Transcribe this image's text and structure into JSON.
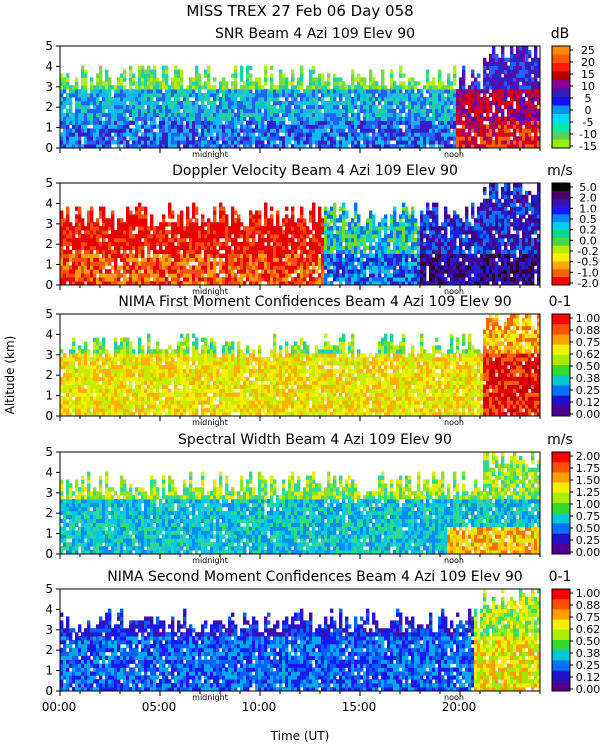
{
  "figure": {
    "title": "MISS TREX  27 Feb 06 Day 058",
    "ylabel": "Altitude (km)",
    "xlabel": "Time (UT)"
  },
  "marker_labels": {
    "midnight": "midnight",
    "noon": "noon"
  },
  "chart_data": [
    {
      "type": "heatmap",
      "title": "SNR Beam 4 Azi 109 Elev 90",
      "unit": "dB",
      "x_ticks": [
        "00:00",
        "05:00",
        "10:00",
        "15:00",
        "20:00"
      ],
      "x_range_hours": [
        0,
        24
      ],
      "ylim": [
        0,
        5
      ],
      "y_ticks": [
        "0",
        "1",
        "2",
        "3",
        "4",
        "5"
      ],
      "colorbar_labels": [
        "25",
        "20",
        "15",
        "10",
        "5",
        "0",
        "-5",
        "-10",
        "-15"
      ],
      "colorbar_colors": [
        "#ff8a00",
        "#ff5a00",
        "#ff1a00",
        "#b00000",
        "#8a0090",
        "#3a1ab4",
        "#1010ff",
        "#0090ff",
        "#00d8ff",
        "#00e8a8",
        "#5ad05a",
        "#9aec00"
      ],
      "palette": [
        "#b4ec18",
        "#74dc3c",
        "#20d0a8",
        "#10b8f8",
        "#2060ff",
        "#3020c8",
        "#6000a8",
        "#a00060",
        "#e00000",
        "#ff6000"
      ]
    },
    {
      "type": "heatmap",
      "title": "Doppler Velocity Beam 4 Azi 109 Elev 90",
      "unit": "m/s",
      "x_ticks": [
        "00:00",
        "05:00",
        "10:00",
        "15:00",
        "20:00"
      ],
      "x_range_hours": [
        0,
        24
      ],
      "ylim": [
        0,
        5
      ],
      "y_ticks": [
        "0",
        "1",
        "2",
        "3",
        "4",
        "5"
      ],
      "colorbar_labels": [
        "5.0",
        "2.0",
        "1.0",
        "0.5",
        "0.2",
        "0.0",
        "-0.2",
        "-0.5",
        "-1.0",
        "-2.0"
      ],
      "colorbar_colors": [
        "#000000",
        "#4a0060",
        "#3a10b0",
        "#1818ff",
        "#0088ff",
        "#00d0e8",
        "#00d890",
        "#48d848",
        "#b8ec00",
        "#ffee00",
        "#ffaa00",
        "#ff6000",
        "#ff0000"
      ],
      "palette": [
        "#e80000",
        "#ff5000",
        "#ffa000",
        "#f0e400",
        "#70dc20",
        "#00c8e0",
        "#0070ff",
        "#2020d0",
        "#400090",
        "#300030"
      ]
    },
    {
      "type": "heatmap",
      "title": "NIMA First Moment Confidences Beam 4 Azi 109 Elev 90",
      "unit": "0-1",
      "x_ticks": [
        "00:00",
        "05:00",
        "10:00",
        "15:00",
        "20:00"
      ],
      "x_range_hours": [
        0,
        24
      ],
      "ylim": [
        0,
        5
      ],
      "y_ticks": [
        "0",
        "1",
        "2",
        "3",
        "4",
        "5"
      ],
      "colorbar_labels": [
        "1.00",
        "0.88",
        "0.75",
        "0.62",
        "0.50",
        "0.38",
        "0.25",
        "0.12",
        "0.00"
      ],
      "colorbar_colors": [
        "#ff0000",
        "#ff5000",
        "#ffa000",
        "#f0f000",
        "#a8ec00",
        "#30d830",
        "#00c8d0",
        "#0070ff",
        "#2010c8",
        "#500090"
      ],
      "palette": [
        "#2020c8",
        "#00a0f0",
        "#20d0a0",
        "#70dc30",
        "#c8ec00",
        "#f4f000",
        "#ffb000",
        "#ff6000",
        "#e80000",
        "#c00000"
      ]
    },
    {
      "type": "heatmap",
      "title": "Spectral Width Beam 4 Azi 109 Elev 90",
      "unit": "m/s",
      "x_ticks": [
        "00:00",
        "05:00",
        "10:00",
        "15:00",
        "20:00"
      ],
      "x_range_hours": [
        0,
        24
      ],
      "ylim": [
        0,
        5
      ],
      "y_ticks": [
        "0",
        "1",
        "2",
        "3",
        "4",
        "5"
      ],
      "colorbar_labels": [
        "2.00",
        "1.75",
        "1.50",
        "1.25",
        "1.00",
        "0.75",
        "0.50",
        "0.25",
        "0.00"
      ],
      "colorbar_colors": [
        "#ff0000",
        "#ff5000",
        "#ffa000",
        "#f0f000",
        "#a8ec00",
        "#30d830",
        "#00c8d0",
        "#0070ff",
        "#2010c8",
        "#500090"
      ],
      "palette": [
        "#2030d0",
        "#0090f8",
        "#00c8e0",
        "#30d890",
        "#90e020",
        "#e0ec00",
        "#ffc000",
        "#ff7000",
        "#f02000",
        "#b00000"
      ]
    },
    {
      "type": "heatmap",
      "title": "NIMA Second Moment Confidences Beam 4 Azi 109 Elev 90",
      "unit": "0-1",
      "x_ticks": [
        "00:00",
        "05:00",
        "10:00",
        "15:00",
        "20:00"
      ],
      "x_range_hours": [
        0,
        24
      ],
      "ylim": [
        0,
        5
      ],
      "y_ticks": [
        "0",
        "1",
        "2",
        "3",
        "4",
        "5"
      ],
      "colorbar_labels": [
        "1.00",
        "0.88",
        "0.75",
        "0.62",
        "0.50",
        "0.38",
        "0.25",
        "0.12",
        "0.00"
      ],
      "colorbar_colors": [
        "#ff0000",
        "#ff5000",
        "#ffa000",
        "#f0f000",
        "#a8ec00",
        "#30d830",
        "#00c8d0",
        "#0070ff",
        "#2010c8",
        "#500090"
      ],
      "palette": [
        "#3a10b0",
        "#1818f0",
        "#0060ff",
        "#00a8f0",
        "#00d0c0",
        "#40d870",
        "#a0e800",
        "#f0f000",
        "#ffa000",
        "#ff3000"
      ]
    }
  ]
}
